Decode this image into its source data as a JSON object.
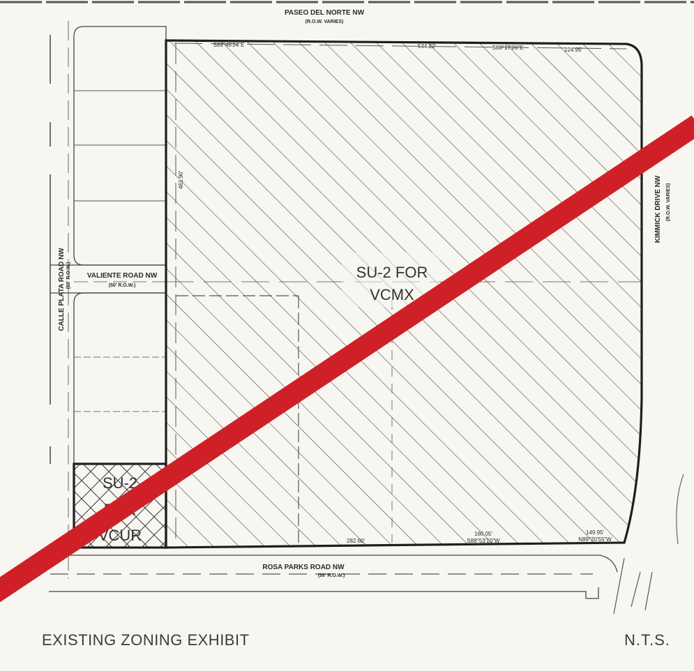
{
  "roads": {
    "north": {
      "name": "PASEO DEL NORTE NW",
      "row": "(R.O.W. VARIES)"
    },
    "south": {
      "name": "ROSA PARKS ROAD NW",
      "row": "(58' R.O.W.)"
    },
    "east": {
      "name": "KIMMICK DRIVE NW",
      "row": "(R.O.W. VARIES)"
    },
    "west": {
      "name": "CALLE PLATA ROAD NW",
      "row": "(58' R.O.W.)"
    },
    "interior": {
      "name": "VALIENTE ROAD NW",
      "row": "(50' R.O.W.)"
    }
  },
  "zones": {
    "main": {
      "line1": "SU-2 FOR",
      "line2": "VCMX"
    },
    "corner": {
      "line1": "SU-2",
      "line2": "FOR",
      "line3": "VCUR"
    }
  },
  "bearings": {
    "north_1": "S89°45'24\"E",
    "north_2": "S88°17'26\"E",
    "south_1": "S88°53'10\"W",
    "south_2": "N89°20'55\"W",
    "west": ""
  },
  "distances": {
    "north_1": "544.22'",
    "north_2": "224.95'",
    "west": "461.90'",
    "south_1": "282.60'",
    "south_2": "160.05'",
    "south_3": "149.95'"
  },
  "title": "EXISTING ZONING EXHIBIT",
  "scale": "N.T.S.",
  "colors": {
    "strike": "#cf2027",
    "ink": "#2a2a2a",
    "paper": "#f7f6f1"
  }
}
